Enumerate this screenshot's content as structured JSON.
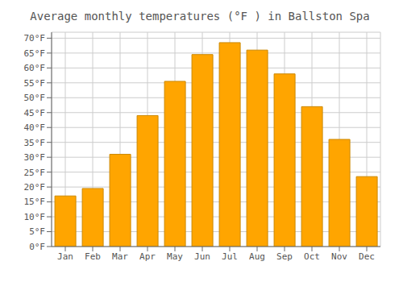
{
  "chart_data": {
    "type": "bar",
    "title": "Average monthly temperatures (°F ) in Ballston Spa",
    "categories": [
      "Jan",
      "Feb",
      "Mar",
      "Apr",
      "May",
      "Jun",
      "Jul",
      "Aug",
      "Sep",
      "Oct",
      "Nov",
      "Dec"
    ],
    "values": [
      17,
      19.5,
      31,
      44,
      55.5,
      64.5,
      68.5,
      66,
      58,
      47,
      36,
      23.5
    ],
    "color": "#FFA500",
    "ylim": [
      0,
      72
    ],
    "yticks": [
      {
        "value": 0,
        "label": "0°F"
      },
      {
        "value": 5,
        "label": "5°F"
      },
      {
        "value": 10,
        "label": "10°F"
      },
      {
        "value": 15,
        "label": "15°F"
      },
      {
        "value": 20,
        "label": "20°F"
      },
      {
        "value": 25,
        "label": "25°F"
      },
      {
        "value": 30,
        "label": "30°F"
      },
      {
        "value": 35,
        "label": "35°F"
      },
      {
        "value": 40,
        "label": "40°F"
      },
      {
        "value": 45,
        "label": "45°F"
      },
      {
        "value": 50,
        "label": "50°F"
      },
      {
        "value": 55,
        "label": "55°F"
      },
      {
        "value": 60,
        "label": "60°F"
      },
      {
        "value": 65,
        "label": "65°F"
      },
      {
        "value": 70,
        "label": "70°F"
      }
    ],
    "grid": true
  }
}
